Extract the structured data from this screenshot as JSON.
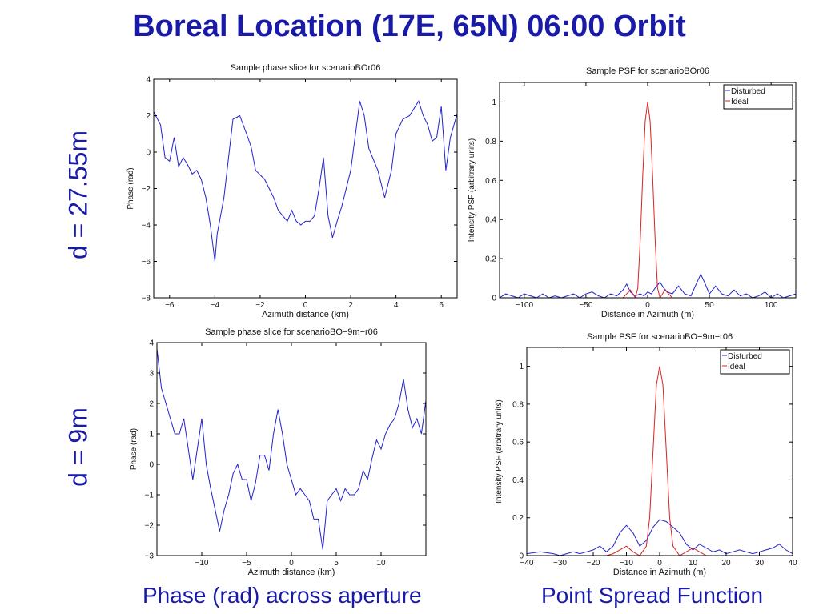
{
  "slide": {
    "title": "Boreal Location (17E, 65N) 06:00 Orbit",
    "row_labels": [
      "d  = 27.55m",
      "d  = 9m"
    ],
    "captions": [
      "Phase (rad) across aperture",
      "Point Spread Function"
    ]
  },
  "chart_data": [
    {
      "id": "phase1",
      "type": "line",
      "title": "Sample phase slice for scenarioBOr06",
      "xlabel": "Azimuth distance (km)",
      "ylabel": "Phase (rad)",
      "xlim": [
        -6.7,
        6.7
      ],
      "ylim": [
        -8,
        4
      ],
      "xticks": [
        -6,
        -4,
        -2,
        0,
        2,
        4,
        6
      ],
      "yticks": [
        -8,
        -6,
        -4,
        -2,
        0,
        2,
        4
      ],
      "grid": false,
      "series": [
        {
          "color": "#2222cc",
          "x": [
            -6.7,
            -6.4,
            -6.2,
            -6.0,
            -5.8,
            -5.6,
            -5.4,
            -5.2,
            -5.0,
            -4.8,
            -4.6,
            -4.4,
            -4.2,
            -4.0,
            -3.9,
            -3.6,
            -3.2,
            -2.9,
            -2.6,
            -2.4,
            -2.2,
            -1.8,
            -1.4,
            -1.2,
            -1.0,
            -0.8,
            -0.6,
            -0.4,
            -0.2,
            0.0,
            0.2,
            0.4,
            0.6,
            0.8,
            1.0,
            1.2,
            1.4,
            1.6,
            2.0,
            2.4,
            2.6,
            2.8,
            3.2,
            3.5,
            3.8,
            4.0,
            4.3,
            4.6,
            5.0,
            5.2,
            5.4,
            5.6,
            5.8,
            6.0,
            6.2,
            6.4,
            6.7
          ],
          "y": [
            2.2,
            1.5,
            -0.3,
            -0.5,
            0.8,
            -0.8,
            -0.3,
            -0.7,
            -1.2,
            -1.0,
            -1.5,
            -2.5,
            -4.0,
            -6.0,
            -4.5,
            -2.5,
            1.8,
            2.0,
            1.0,
            0.3,
            -1.0,
            -1.5,
            -2.5,
            -3.2,
            -3.5,
            -3.8,
            -3.2,
            -3.8,
            -4.0,
            -3.8,
            -3.8,
            -3.5,
            -2.0,
            -0.3,
            -3.5,
            -4.7,
            -3.8,
            -3.0,
            -1.0,
            2.8,
            2.0,
            0.2,
            -1.0,
            -2.5,
            -1.0,
            1.0,
            1.8,
            2.0,
            2.8,
            2.0,
            1.5,
            0.6,
            0.8,
            2.5,
            -1.0,
            0.8,
            2.1
          ]
        }
      ]
    },
    {
      "id": "psf1",
      "type": "line",
      "title": "Sample PSF for scenarioBOr06",
      "xlabel": "Distance in Azimuth (m)",
      "ylabel": "Intensity PSF (arbitrary units)",
      "xlim": [
        -120,
        120
      ],
      "ylim": [
        0,
        1.1
      ],
      "xticks": [
        -100,
        -50,
        0,
        50,
        100
      ],
      "yticks": [
        0,
        0.2,
        0.4,
        0.6,
        0.8,
        1
      ],
      "legend": "top-right",
      "grid": false,
      "series": [
        {
          "name": "Disturbed",
          "color": "#2222cc",
          "x": [
            -120,
            -115,
            -110,
            -105,
            -100,
            -95,
            -90,
            -85,
            -80,
            -75,
            -70,
            -65,
            -60,
            -55,
            -50,
            -45,
            -40,
            -35,
            -30,
            -25,
            -20,
            -17,
            -14,
            -10,
            -6,
            -3,
            0,
            3,
            6,
            10,
            13,
            16,
            20,
            25,
            30,
            35,
            40,
            43,
            46,
            50,
            55,
            60,
            65,
            70,
            75,
            80,
            85,
            90,
            95,
            100,
            105,
            110,
            115,
            120
          ],
          "y": [
            0.0,
            0.02,
            0.01,
            0.0,
            0.02,
            0.01,
            0.0,
            0.02,
            0.0,
            0.01,
            0.0,
            0.01,
            0.02,
            0.0,
            0.02,
            0.03,
            0.01,
            0.0,
            0.02,
            0.01,
            0.04,
            0.07,
            0.03,
            0.01,
            0.02,
            0.01,
            0.03,
            0.02,
            0.05,
            0.08,
            0.05,
            0.03,
            0.02,
            0.06,
            0.02,
            0.01,
            0.08,
            0.12,
            0.08,
            0.02,
            0.06,
            0.02,
            0.01,
            0.04,
            0.01,
            0.02,
            0.0,
            0.01,
            0.03,
            0.0,
            0.02,
            0.0,
            0.01,
            0.02
          ]
        },
        {
          "name": "Ideal",
          "color": "#dd2222",
          "x": [
            -120,
            -20,
            -14,
            -10,
            -8,
            -6,
            -4,
            -2,
            0,
            2,
            4,
            6,
            8,
            10,
            14,
            20,
            120
          ],
          "y": [
            0.0,
            0.0,
            0.04,
            0.0,
            0.05,
            0.3,
            0.62,
            0.9,
            1.0,
            0.9,
            0.62,
            0.3,
            0.05,
            0.0,
            0.04,
            0.0,
            0.0
          ]
        }
      ]
    },
    {
      "id": "phase2",
      "type": "line",
      "title": "Sample phase slice for scenarioBO−9m−r06",
      "xlabel": "Azimuth distance (km)",
      "ylabel": "Phase (rad)",
      "xlim": [
        -15,
        15
      ],
      "ylim": [
        -3,
        4
      ],
      "xticks": [
        -10,
        -5,
        0,
        5,
        10
      ],
      "yticks": [
        -3,
        -2,
        -1,
        0,
        1,
        2,
        3,
        4
      ],
      "grid": false,
      "series": [
        {
          "color": "#2222cc",
          "x": [
            -15.0,
            -14.5,
            -14.0,
            -13.5,
            -13.0,
            -12.5,
            -12.0,
            -11.5,
            -11.0,
            -10.5,
            -10.0,
            -9.5,
            -9.0,
            -8.5,
            -8.0,
            -7.5,
            -7.0,
            -6.5,
            -6.0,
            -5.5,
            -5.0,
            -4.5,
            -4.0,
            -3.5,
            -3.0,
            -2.5,
            -2.0,
            -1.5,
            -1.0,
            -0.5,
            0.0,
            0.5,
            1.0,
            1.5,
            2.0,
            2.5,
            3.0,
            3.5,
            4.0,
            4.5,
            5.0,
            5.5,
            6.0,
            6.5,
            7.0,
            7.5,
            8.0,
            8.5,
            9.0,
            9.5,
            10.0,
            10.5,
            11.0,
            11.5,
            12.0,
            12.5,
            13.0,
            13.5,
            14.0,
            14.5,
            15.0
          ],
          "y": [
            3.8,
            2.5,
            2.0,
            1.5,
            1.0,
            1.0,
            1.5,
            0.5,
            -0.5,
            0.5,
            1.5,
            0.0,
            -0.8,
            -1.5,
            -2.2,
            -1.5,
            -1.0,
            -0.3,
            0.0,
            -0.5,
            -0.5,
            -1.2,
            -0.6,
            0.3,
            0.3,
            -0.2,
            1.0,
            1.8,
            1.0,
            0.0,
            -0.5,
            -1.0,
            -0.8,
            -1.0,
            -1.2,
            -1.8,
            -1.8,
            -2.8,
            -1.2,
            -1.0,
            -0.8,
            -1.2,
            -0.8,
            -1.0,
            -1.0,
            -0.8,
            -0.2,
            -0.5,
            0.2,
            0.8,
            0.5,
            1.0,
            1.3,
            1.5,
            2.0,
            2.8,
            1.8,
            1.2,
            1.5,
            1.0,
            2.1
          ]
        }
      ]
    },
    {
      "id": "psf2",
      "type": "line",
      "title": "Sample PSF for scenarioBO−9m−r06",
      "xlabel": "Distance in Azimuth (m)",
      "ylabel": "Intensity PSF (arbitrary units)",
      "xlim": [
        -40,
        40
      ],
      "ylim": [
        0,
        1.1
      ],
      "xticks": [
        -40,
        -30,
        -20,
        -10,
        0,
        10,
        20,
        30,
        40
      ],
      "yticks": [
        0,
        0.2,
        0.4,
        0.6,
        0.8,
        1
      ],
      "legend": "top-right",
      "grid": false,
      "series": [
        {
          "name": "Disturbed",
          "color": "#2222cc",
          "x": [
            -40,
            -36,
            -32,
            -30,
            -28,
            -26,
            -24,
            -22,
            -20,
            -18,
            -16,
            -14,
            -12,
            -10,
            -8,
            -6,
            -4,
            -2,
            0,
            2,
            4,
            6,
            8,
            10,
            12,
            14,
            16,
            18,
            20,
            22,
            24,
            26,
            28,
            30,
            32,
            34,
            36,
            38,
            40
          ],
          "y": [
            0.01,
            0.02,
            0.01,
            0.0,
            0.01,
            0.02,
            0.01,
            0.02,
            0.03,
            0.05,
            0.02,
            0.05,
            0.12,
            0.16,
            0.12,
            0.05,
            0.08,
            0.15,
            0.19,
            0.18,
            0.15,
            0.12,
            0.06,
            0.03,
            0.06,
            0.04,
            0.02,
            0.03,
            0.01,
            0.02,
            0.03,
            0.02,
            0.01,
            0.02,
            0.03,
            0.04,
            0.06,
            0.03,
            0.01
          ]
        },
        {
          "name": "Ideal",
          "color": "#dd2222",
          "x": [
            -40,
            -16,
            -14,
            -12,
            -10,
            -8,
            -6,
            -4,
            -3,
            -2,
            -1,
            0,
            1,
            2,
            3,
            4,
            6,
            8,
            10,
            12,
            14,
            40
          ],
          "y": [
            0.0,
            0.0,
            0.01,
            0.03,
            0.05,
            0.02,
            0.0,
            0.05,
            0.2,
            0.55,
            0.9,
            1.0,
            0.9,
            0.55,
            0.2,
            0.05,
            0.0,
            0.02,
            0.04,
            0.02,
            0.0,
            0.0
          ]
        }
      ]
    }
  ]
}
